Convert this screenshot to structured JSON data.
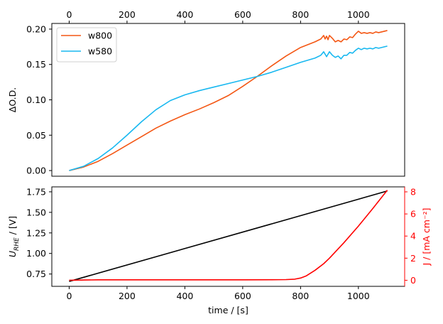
{
  "chart_data": [
    {
      "type": "line",
      "position": "top",
      "xlabel": "",
      "ylabel": "ΔO.D.",
      "xlim": [
        -60,
        1160
      ],
      "ylim": [
        -0.008,
        0.208
      ],
      "xticks": [
        0,
        200,
        400,
        600,
        800,
        1000
      ],
      "xtick_labels": [
        "0",
        "200",
        "400",
        "600",
        "800",
        "1000"
      ],
      "xticks_position": "top",
      "yticks": [
        0.0,
        0.05,
        0.1,
        0.15,
        0.2
      ],
      "ytick_labels": [
        "0.00",
        "0.05",
        "0.10",
        "0.15",
        "0.20"
      ],
      "grid": false,
      "legend": "upper-left",
      "series": [
        {
          "name": "w800",
          "color": "#f45714",
          "points": [
            [
              0,
              0.0
            ],
            [
              50,
              0.005
            ],
            [
              100,
              0.013
            ],
            [
              150,
              0.024
            ],
            [
              200,
              0.036
            ],
            [
              250,
              0.048
            ],
            [
              300,
              0.06
            ],
            [
              350,
              0.07
            ],
            [
              400,
              0.079
            ],
            [
              450,
              0.087
            ],
            [
              500,
              0.096
            ],
            [
              550,
              0.106
            ],
            [
              600,
              0.119
            ],
            [
              650,
              0.133
            ],
            [
              700,
              0.148
            ],
            [
              750,
              0.162
            ],
            [
              800,
              0.174
            ],
            [
              850,
              0.182
            ],
            [
              870,
              0.186
            ],
            [
              880,
              0.191
            ],
            [
              885,
              0.186
            ],
            [
              890,
              0.19
            ],
            [
              895,
              0.185
            ],
            [
              900,
              0.191
            ],
            [
              910,
              0.187
            ],
            [
              920,
              0.182
            ],
            [
              930,
              0.184
            ],
            [
              940,
              0.182
            ],
            [
              950,
              0.186
            ],
            [
              960,
              0.185
            ],
            [
              970,
              0.189
            ],
            [
              980,
              0.188
            ],
            [
              990,
              0.193
            ],
            [
              1000,
              0.197
            ],
            [
              1010,
              0.194
            ],
            [
              1020,
              0.195
            ],
            [
              1030,
              0.194
            ],
            [
              1040,
              0.195
            ],
            [
              1050,
              0.194
            ],
            [
              1060,
              0.196
            ],
            [
              1070,
              0.195
            ],
            [
              1080,
              0.196
            ],
            [
              1090,
              0.197
            ],
            [
              1100,
              0.198
            ]
          ]
        },
        {
          "name": "w580",
          "color": "#18b8f0",
          "points": [
            [
              0,
              0.0
            ],
            [
              50,
              0.006
            ],
            [
              100,
              0.017
            ],
            [
              150,
              0.032
            ],
            [
              200,
              0.05
            ],
            [
              250,
              0.069
            ],
            [
              300,
              0.086
            ],
            [
              350,
              0.099
            ],
            [
              400,
              0.107
            ],
            [
              450,
              0.113
            ],
            [
              500,
              0.118
            ],
            [
              550,
              0.123
            ],
            [
              600,
              0.128
            ],
            [
              650,
              0.133
            ],
            [
              700,
              0.139
            ],
            [
              750,
              0.146
            ],
            [
              800,
              0.153
            ],
            [
              850,
              0.159
            ],
            [
              870,
              0.163
            ],
            [
              880,
              0.168
            ],
            [
              890,
              0.161
            ],
            [
              900,
              0.168
            ],
            [
              910,
              0.163
            ],
            [
              920,
              0.16
            ],
            [
              930,
              0.162
            ],
            [
              940,
              0.158
            ],
            [
              950,
              0.163
            ],
            [
              960,
              0.163
            ],
            [
              970,
              0.167
            ],
            [
              980,
              0.166
            ],
            [
              990,
              0.17
            ],
            [
              1000,
              0.173
            ],
            [
              1010,
              0.171
            ],
            [
              1020,
              0.173
            ],
            [
              1030,
              0.172
            ],
            [
              1040,
              0.173
            ],
            [
              1050,
              0.172
            ],
            [
              1060,
              0.174
            ],
            [
              1070,
              0.173
            ],
            [
              1080,
              0.174
            ],
            [
              1090,
              0.175
            ],
            [
              1100,
              0.176
            ]
          ]
        }
      ]
    },
    {
      "type": "line",
      "position": "bottom",
      "xlabel": "time / [s]",
      "ylabel": "U_RHE / [V]",
      "ylabel_right": "J / [mA cm⁻²]",
      "xlim": [
        -60,
        1160
      ],
      "ylim": [
        0.6,
        1.81
      ],
      "ylim_right": [
        -0.55,
        8.45
      ],
      "xticks": [
        0,
        200,
        400,
        600,
        800,
        1000
      ],
      "xtick_labels": [
        "0",
        "200",
        "400",
        "600",
        "800",
        "1000"
      ],
      "yticks": [
        0.75,
        1.0,
        1.25,
        1.5,
        1.75
      ],
      "ytick_labels": [
        "0.75",
        "1.00",
        "1.25",
        "1.50",
        "1.75"
      ],
      "yticks_right": [
        0,
        2,
        4,
        6,
        8
      ],
      "ytick_labels_right": [
        "0",
        "2",
        "4",
        "6",
        "8"
      ],
      "right_axis_color": "#ff0000",
      "grid": false,
      "series": [
        {
          "axis": "left",
          "color": "#000000",
          "points": [
            [
              0,
              0.66
            ],
            [
              1100,
              1.76
            ]
          ]
        },
        {
          "axis": "right",
          "color": "#ff0000",
          "points": [
            [
              0,
              0.0
            ],
            [
              100,
              0.04
            ],
            [
              200,
              0.04
            ],
            [
              300,
              0.04
            ],
            [
              400,
              0.04
            ],
            [
              500,
              0.04
            ],
            [
              600,
              0.04
            ],
            [
              700,
              0.05
            ],
            [
              750,
              0.06
            ],
            [
              780,
              0.1
            ],
            [
              800,
              0.2
            ],
            [
              820,
              0.4
            ],
            [
              850,
              0.9
            ],
            [
              880,
              1.5
            ],
            [
              900,
              2.0
            ],
            [
              950,
              3.4
            ],
            [
              1000,
              4.9
            ],
            [
              1050,
              6.5
            ],
            [
              1100,
              8.15
            ]
          ]
        }
      ]
    }
  ]
}
